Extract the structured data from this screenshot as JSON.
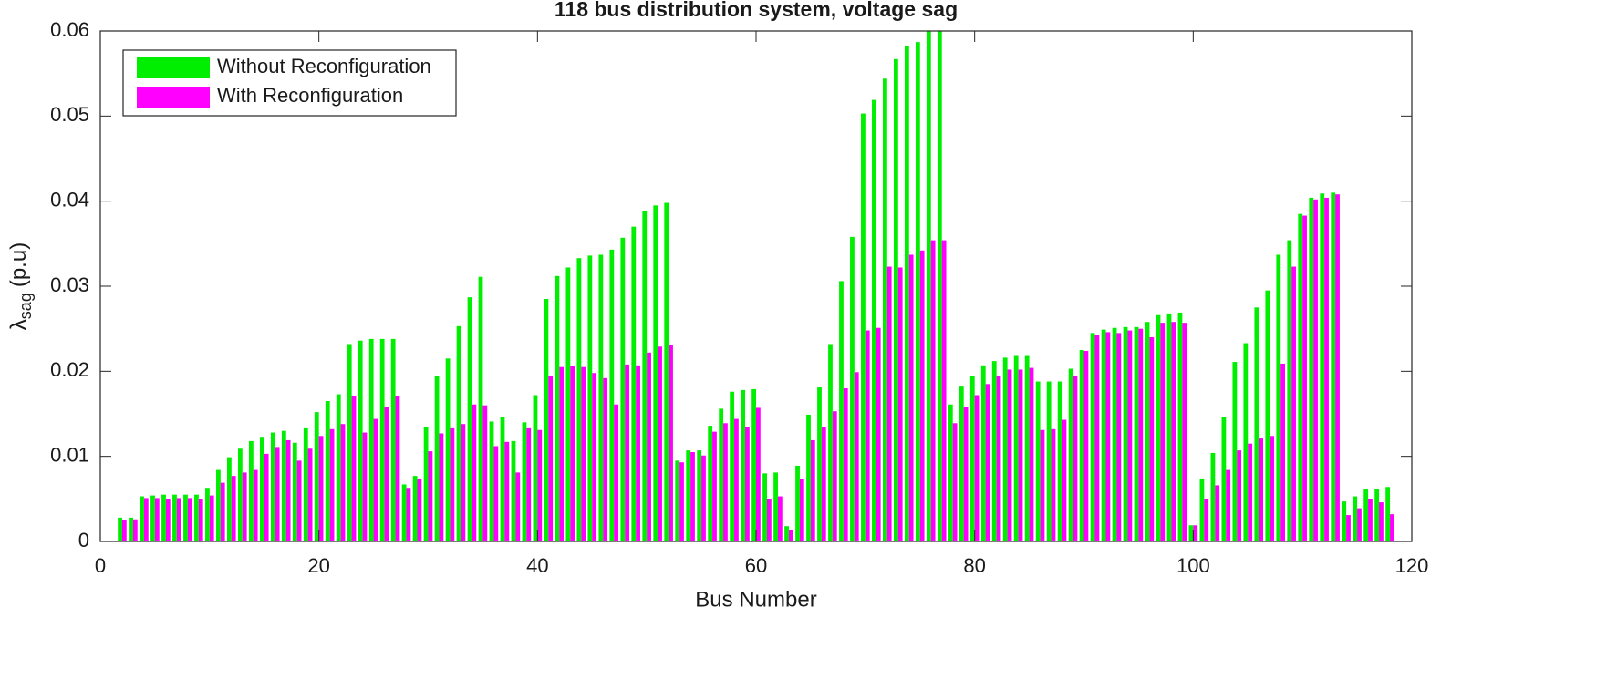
{
  "chart_data": {
    "type": "grouped-bar",
    "title": "118 bus distribution system, voltage sag",
    "xlabel": "Bus Number",
    "ylabel": "λ",
    "ylabel_sub": "sag",
    "ylabel_unit": "(p.u)",
    "x": [
      1,
      2,
      3,
      4,
      5,
      6,
      7,
      8,
      9,
      10,
      11,
      12,
      13,
      14,
      15,
      16,
      17,
      18,
      19,
      20,
      21,
      22,
      23,
      24,
      25,
      26,
      27,
      28,
      29,
      30,
      31,
      32,
      33,
      34,
      35,
      36,
      37,
      38,
      39,
      40,
      41,
      42,
      43,
      44,
      45,
      46,
      47,
      48,
      49,
      50,
      51,
      52,
      53,
      54,
      55,
      56,
      57,
      58,
      59,
      60,
      61,
      62,
      63,
      64,
      65,
      66,
      67,
      68,
      69,
      70,
      71,
      72,
      73,
      74,
      75,
      76,
      77,
      78,
      79,
      80,
      81,
      82,
      83,
      84,
      85,
      86,
      87,
      88,
      89,
      90,
      91,
      92,
      93,
      94,
      95,
      96,
      97,
      98,
      99,
      100,
      101,
      102,
      103,
      104,
      105,
      106,
      107,
      108,
      109,
      110,
      111,
      112,
      113,
      114,
      115,
      116,
      117,
      118
    ],
    "series": [
      {
        "name": "Without Reconfiguration",
        "color": "#00ee00",
        "values": [
          0,
          0.0028,
          0.0028,
          0.0053,
          0.0054,
          0.0055,
          0.0055,
          0.0055,
          0.0055,
          0.0063,
          0.0084,
          0.0099,
          0.0109,
          0.0118,
          0.0123,
          0.0128,
          0.013,
          0.0116,
          0.0133,
          0.0152,
          0.0165,
          0.0173,
          0.0232,
          0.0236,
          0.0238,
          0.0238,
          0.0238,
          0.0067,
          0.0077,
          0.0135,
          0.0194,
          0.0215,
          0.0253,
          0.0287,
          0.0311,
          0.0141,
          0.0146,
          0.0118,
          0.014,
          0.0172,
          0.0285,
          0.0312,
          0.0322,
          0.0333,
          0.0336,
          0.0337,
          0.0343,
          0.0357,
          0.037,
          0.0388,
          0.0395,
          0.0398,
          0.0095,
          0.0107,
          0.0107,
          0.0136,
          0.0156,
          0.0176,
          0.0178,
          0.0179,
          0.008,
          0.0081,
          0.0018,
          0.0089,
          0.0149,
          0.0181,
          0.0232,
          0.0306,
          0.0358,
          0.0503,
          0.0519,
          0.0544,
          0.0567,
          0.0582,
          0.0587,
          0.06,
          0.06,
          0.0161,
          0.0182,
          0.0195,
          0.0207,
          0.0212,
          0.0216,
          0.0218,
          0.0218,
          0.0188,
          0.0188,
          0.0188,
          0.0203,
          0.0225,
          0.0245,
          0.0249,
          0.0251,
          0.0252,
          0.0252,
          0.0258,
          0.0266,
          0.0268,
          0.0269,
          0.0019,
          0.0074,
          0.0104,
          0.0146,
          0.0211,
          0.0233,
          0.0275,
          0.0295,
          0.0337,
          0.0354,
          0.0385,
          0.0404,
          0.0409,
          0.041,
          0.0047,
          0.0053,
          0.0061,
          0.0062,
          0.0064
        ]
      },
      {
        "name": "With Reconfiguration",
        "color": "#ff00ff",
        "values": [
          0,
          0.0025,
          0.0026,
          0.0051,
          0.0051,
          0.005,
          0.0051,
          0.0051,
          0.005,
          0.0054,
          0.0069,
          0.0077,
          0.0081,
          0.0084,
          0.0103,
          0.0111,
          0.0119,
          0.0095,
          0.0109,
          0.0124,
          0.0132,
          0.0138,
          0.0171,
          0.0128,
          0.0144,
          0.0158,
          0.0171,
          0.0063,
          0.0074,
          0.0106,
          0.0127,
          0.0133,
          0.0138,
          0.0161,
          0.016,
          0.0112,
          0.0117,
          0.0081,
          0.0133,
          0.0131,
          0.0195,
          0.0205,
          0.0206,
          0.0205,
          0.0198,
          0.0192,
          0.0161,
          0.0208,
          0.0207,
          0.0222,
          0.0229,
          0.0231,
          0.0093,
          0.0105,
          0.0101,
          0.0129,
          0.0139,
          0.0144,
          0.0135,
          0.0157,
          0.005,
          0.0053,
          0.0014,
          0.0073,
          0.0119,
          0.0134,
          0.0153,
          0.018,
          0.0199,
          0.0248,
          0.0251,
          0.0323,
          0.0322,
          0.0337,
          0.0342,
          0.0354,
          0.0354,
          0.0139,
          0.0158,
          0.0172,
          0.0185,
          0.0195,
          0.0202,
          0.0202,
          0.0204,
          0.0131,
          0.0132,
          0.0143,
          0.0194,
          0.0224,
          0.0243,
          0.0246,
          0.0245,
          0.0248,
          0.025,
          0.024,
          0.0257,
          0.0258,
          0.0257,
          0.0019,
          0.005,
          0.0066,
          0.0084,
          0.0107,
          0.0115,
          0.0121,
          0.0124,
          0.0209,
          0.0323,
          0.0383,
          0.0402,
          0.0404,
          0.0408,
          0.0031,
          0.0039,
          0.005,
          0.0046,
          0.0032
        ]
      }
    ],
    "xlim": [
      0,
      120
    ],
    "xticks": [
      0,
      20,
      40,
      60,
      80,
      100,
      120
    ],
    "ylim": [
      0,
      0.06
    ],
    "yticks": [
      0,
      0.01,
      0.02,
      0.03,
      0.04,
      0.05,
      0.06
    ],
    "grid": false,
    "legend": "upper-left"
  }
}
